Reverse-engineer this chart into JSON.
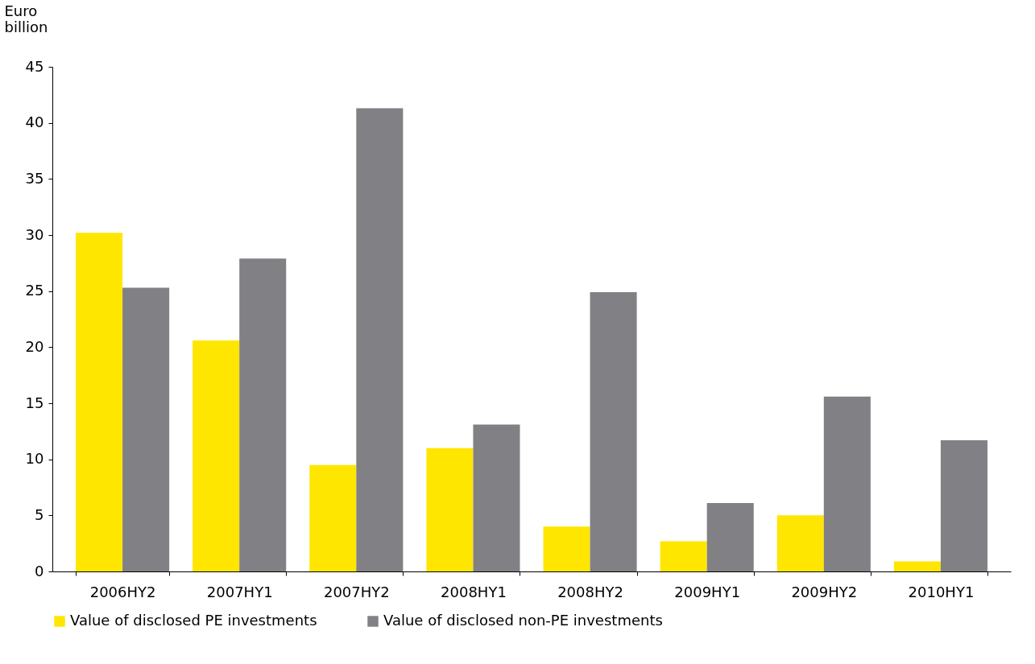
{
  "chart_data": {
    "type": "bar",
    "ylabel": "Euro billion",
    "categories": [
      "2006HY2",
      "2007HY1",
      "2007HY2",
      "2008HY1",
      "2008HY2",
      "2009HY1",
      "2009HY2",
      "2010HY1"
    ],
    "series": [
      {
        "name": "Value of disclosed PE investments",
        "color": "#ffe600",
        "values": [
          30.2,
          20.6,
          9.5,
          11.0,
          4.0,
          2.7,
          5.0,
          0.9
        ]
      },
      {
        "name": "Value of disclosed non-PE investments",
        "color": "#808085",
        "values": [
          25.3,
          27.9,
          41.3,
          13.1,
          24.9,
          6.1,
          15.6,
          11.7
        ]
      }
    ],
    "ylim": [
      0,
      45
    ],
    "yticks": [
      0,
      5,
      10,
      15,
      20,
      25,
      30,
      35,
      40,
      45
    ],
    "grid": false,
    "legend": "bottom"
  }
}
